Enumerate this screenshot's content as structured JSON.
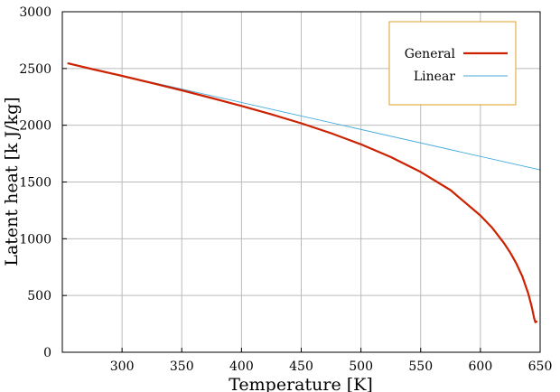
{
  "chart_data": {
    "type": "line",
    "title": "",
    "xlabel": "Temperature [K]",
    "ylabel": "Latent heat [k J/kg]",
    "xlim": [
      250,
      650
    ],
    "ylim": [
      0,
      3000
    ],
    "xticks": [
      300,
      350,
      400,
      450,
      500,
      550,
      600,
      650
    ],
    "yticks": [
      0,
      500,
      1000,
      1500,
      2000,
      2500,
      3000
    ],
    "grid": true,
    "legend_position": "top-right",
    "series": [
      {
        "name": "General",
        "color": "#cc2200",
        "x": [
          255,
          275,
          300,
          325,
          350,
          375,
          400,
          425,
          450,
          475,
          500,
          525,
          550,
          575,
          600,
          610,
          620,
          625,
          630,
          635,
          640,
          643,
          645,
          646,
          647
        ],
        "y": [
          2545,
          2495,
          2435,
          2372,
          2308,
          2240,
          2170,
          2096,
          2017,
          1930,
          1832,
          1720,
          1588,
          1428,
          1205,
          1095,
          958,
          878,
          785,
          670,
          520,
          400,
          300,
          265,
          270
        ]
      },
      {
        "name": "Linear",
        "color": "#44aadd",
        "x": [
          255,
          650
        ],
        "y": [
          2545,
          1607
        ]
      }
    ]
  }
}
